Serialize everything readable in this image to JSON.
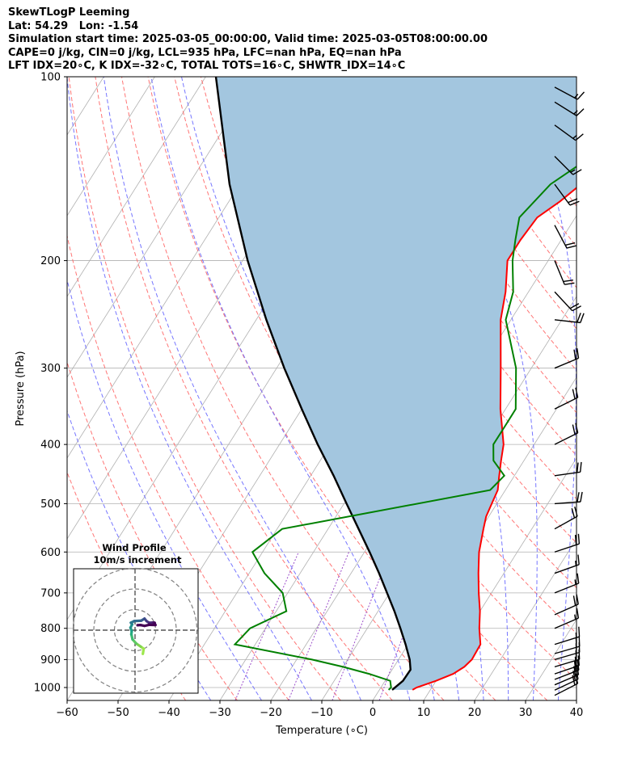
{
  "header": {
    "line1": "SkewTLogP Leeming",
    "line2": "Lat: 54.29   Lon: -1.54",
    "line3": "Simulation start time: 2025-03-05_00:00:00, Valid time: 2025-03-05T08:00:00.00",
    "line4": "CAPE=0 j/kg, CIN=0 j/kg, LCL=935 hPa, LFC=nan hPa, EQ=nan hPa",
    "line5": "LFT IDX=20∘C, K IDX=-32∘C, TOTAL TOTS=16∘C, SHWTR_IDX=14∘C"
  },
  "chart_data": {
    "type": "line",
    "xlabel": "Temperature (∘C)",
    "ylabel": "Pressure (hPa)",
    "xlim": [
      -60,
      40
    ],
    "ylim": [
      1050,
      100
    ],
    "y_scale": "log",
    "x_ticks": [
      "−60",
      "−50",
      "−40",
      "−30",
      "−20",
      "−10",
      "0",
      "10",
      "20",
      "30",
      "40"
    ],
    "y_ticks": [
      "100",
      "200",
      "300",
      "400",
      "500",
      "600",
      "700",
      "800",
      "900",
      "1000"
    ],
    "grid": true,
    "colors": {
      "temperature": "#ff0000",
      "dewpoint": "#008000",
      "parcel": "#000000",
      "cin_fill": "#a3c6df",
      "dry_adiabats": "#ff6666",
      "moist_adiabats": "#6f6fff",
      "mixing_ratio": "#9b4dca",
      "isotherms": "#b0b0b0"
    },
    "series": [
      {
        "key": "temperature",
        "points": [
          [
            1009,
            6.5
          ],
          [
            1000,
            7
          ],
          [
            975,
            10
          ],
          [
            950,
            12.5
          ],
          [
            925,
            13.8
          ],
          [
            900,
            14.4
          ],
          [
            850,
            14.2
          ],
          [
            800,
            12
          ],
          [
            750,
            10
          ],
          [
            700,
            7.5
          ],
          [
            650,
            5
          ],
          [
            600,
            2.5
          ],
          [
            550,
            0.5
          ],
          [
            525,
            -0.5
          ],
          [
            500,
            -1
          ],
          [
            475,
            -1.5
          ],
          [
            450,
            -3
          ],
          [
            425,
            -4.5
          ],
          [
            400,
            -6
          ],
          [
            350,
            -11
          ],
          [
            300,
            -16
          ],
          [
            250,
            -22
          ],
          [
            225,
            -24.5
          ],
          [
            200,
            -28
          ],
          [
            185,
            -28
          ],
          [
            170,
            -27.5
          ],
          [
            160,
            -25
          ],
          [
            145,
            -22
          ],
          [
            135,
            -17
          ],
          [
            125,
            -11
          ],
          [
            115,
            -4.5
          ],
          [
            100,
            4
          ]
        ]
      },
      {
        "key": "dewpoint",
        "points": [
          [
            1009,
            1.8
          ],
          [
            1000,
            2
          ],
          [
            975,
            1
          ],
          [
            950,
            -4
          ],
          [
            925,
            -10
          ],
          [
            900,
            -17
          ],
          [
            850,
            -34
          ],
          [
            800,
            -33
          ],
          [
            750,
            -28
          ],
          [
            700,
            -31
          ],
          [
            650,
            -37
          ],
          [
            600,
            -42
          ],
          [
            550,
            -39
          ],
          [
            475,
            -3
          ],
          [
            450,
            -2
          ],
          [
            425,
            -6
          ],
          [
            400,
            -8
          ],
          [
            375,
            -8
          ],
          [
            350,
            -8
          ],
          [
            300,
            -13
          ],
          [
            250,
            -21
          ],
          [
            225,
            -23
          ],
          [
            200,
            -27
          ],
          [
            185,
            -29
          ],
          [
            170,
            -31
          ],
          [
            150,
            -29
          ],
          [
            140,
            -26
          ],
          [
            125,
            -23
          ],
          [
            100,
            -13
          ]
        ]
      },
      {
        "key": "parcel",
        "points": [
          [
            1009,
            2.5
          ],
          [
            975,
            3.5
          ],
          [
            935,
            3.6
          ],
          [
            900,
            2.2
          ],
          [
            850,
            -0.5
          ],
          [
            800,
            -3.5
          ],
          [
            750,
            -6.8
          ],
          [
            700,
            -10.5
          ],
          [
            650,
            -14.5
          ],
          [
            600,
            -19
          ],
          [
            550,
            -24
          ],
          [
            500,
            -29.5
          ],
          [
            450,
            -35.5
          ],
          [
            400,
            -42.5
          ],
          [
            350,
            -50
          ],
          [
            300,
            -58.5
          ],
          [
            250,
            -68
          ],
          [
            200,
            -79
          ],
          [
            150,
            -92
          ],
          [
            100,
            -108
          ]
        ]
      }
    ],
    "wind_barbs": [
      {
        "p": 1030,
        "u": -19.5,
        "v": -10.0
      },
      {
        "p": 1010,
        "u": -19.7,
        "v": -9.3
      },
      {
        "p": 990,
        "u": -20.0,
        "v": -8.5
      },
      {
        "p": 970,
        "u": -20.2,
        "v": -7.8
      },
      {
        "p": 950,
        "u": -20.5,
        "v": -7.0
      },
      {
        "p": 925,
        "u": -20.0,
        "v": -6.0
      },
      {
        "p": 900,
        "u": -19.0,
        "v": -5.5
      },
      {
        "p": 880,
        "u": -18.0,
        "v": -5.2
      },
      {
        "p": 850,
        "u": -16.0,
        "v": -5.0
      },
      {
        "p": 800,
        "u": -14.0,
        "v": -6.0
      },
      {
        "p": 760,
        "u": -18.0,
        "v": -8.0
      },
      {
        "p": 700,
        "u": -15.0,
        "v": -6.0
      },
      {
        "p": 650,
        "u": -15.5,
        "v": -5.5
      },
      {
        "p": 600,
        "u": -18.0,
        "v": -6.0
      },
      {
        "p": 550,
        "u": -18.0,
        "v": -10.0
      },
      {
        "p": 500,
        "u": -21.0,
        "v": -1.5
      },
      {
        "p": 450,
        "u": -21.0,
        "v": -3.0
      },
      {
        "p": 400,
        "u": -20.0,
        "v": -10.0
      },
      {
        "p": 350,
        "u": -17.0,
        "v": -8.5
      },
      {
        "p": 300,
        "u": -18.0,
        "v": -7.5
      },
      {
        "p": 250,
        "u": -18.0,
        "v": 2.0
      },
      {
        "p": 225,
        "u": -13.0,
        "v": 14.0
      },
      {
        "p": 200,
        "u": -7.0,
        "v": 17.0
      },
      {
        "p": 175,
        "u": -9.0,
        "v": 17.0
      },
      {
        "p": 150,
        "u": -11.0,
        "v": 15.0
      },
      {
        "p": 135,
        "u": -11.0,
        "v": 11.0
      },
      {
        "p": 120,
        "u": -11.0,
        "v": 8.0
      },
      {
        "p": 110,
        "u": -12.0,
        "v": 7.5
      },
      {
        "p": 104,
        "u": -13.0,
        "v": 7.0
      }
    ],
    "hodograph": {
      "title": "Wind Profile",
      "subtitle": "10m/s increment",
      "ring_increment": 10,
      "rings": 3,
      "max_speed": 30,
      "trace": [
        [
          3.8,
          -11.5
        ],
        [
          4.2,
          -9
        ],
        [
          2.8,
          -8
        ],
        [
          0.6,
          -6.5
        ],
        [
          -1.2,
          -4.5
        ],
        [
          -1.8,
          -2
        ],
        [
          -1.6,
          -0.5
        ],
        [
          -2.2,
          1.2
        ],
        [
          -1.4,
          2.8
        ],
        [
          -2.0,
          3.6
        ],
        [
          -0.4,
          4.4
        ],
        [
          3.0,
          4.6
        ],
        [
          4.6,
          5.6
        ],
        [
          5.6,
          4.4
        ],
        [
          6.8,
          3.6
        ],
        [
          8.8,
          3.7
        ],
        [
          9.5,
          3.6
        ],
        [
          9.6,
          3.1
        ],
        [
          9.9,
          2.5
        ],
        [
          7.0,
          2.6
        ],
        [
          4.6,
          2.1
        ],
        [
          2.6,
          2.5
        ],
        [
          1.2,
          2.4
        ]
      ]
    }
  }
}
